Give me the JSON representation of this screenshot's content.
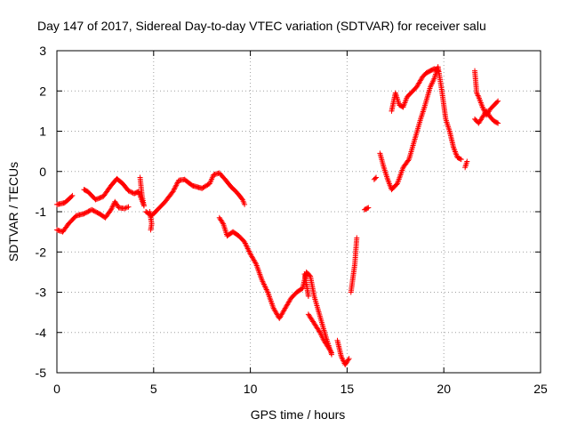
{
  "chart_data": {
    "type": "scatter",
    "title": "Day 147 of 2017, Sidereal Day-to-day VTEC variation (SDTVAR) for receiver salu",
    "xlabel": "GPS time / hours",
    "ylabel": "SDTVAR / TECUs",
    "xlim": [
      0,
      25
    ],
    "ylim": [
      -5,
      3
    ],
    "x_ticks": [
      "0",
      "5",
      "10",
      "15",
      "20",
      "25"
    ],
    "y_ticks": [
      "-5",
      "-4",
      "-3",
      "-2",
      "-1",
      "0",
      "1",
      "2",
      "3"
    ],
    "grid": true,
    "marker": "+",
    "marker_color": "#ff0000",
    "series": [
      {
        "segments": [
          [
            [
              0.0,
              -0.82
            ],
            [
              0.4,
              -0.78
            ],
            [
              0.7,
              -0.65
            ],
            [
              0.8,
              -0.6
            ]
          ],
          [
            [
              1.4,
              -0.45
            ],
            [
              1.6,
              -0.5
            ],
            [
              2.0,
              -0.7
            ],
            [
              2.4,
              -0.62
            ],
            [
              2.8,
              -0.35
            ],
            [
              3.1,
              -0.18
            ],
            [
              3.4,
              -0.3
            ],
            [
              3.7,
              -0.48
            ],
            [
              4.0,
              -0.55
            ],
            [
              4.2,
              -0.5
            ],
            [
              4.3,
              -0.6
            ],
            [
              4.5,
              -0.85
            ]
          ],
          [
            [
              4.6,
              -1.0
            ],
            [
              4.9,
              -1.1
            ],
            [
              5.2,
              -0.95
            ],
            [
              5.6,
              -0.75
            ],
            [
              6.0,
              -0.5
            ],
            [
              6.3,
              -0.22
            ],
            [
              6.6,
              -0.2
            ],
            [
              7.0,
              -0.35
            ],
            [
              7.5,
              -0.42
            ],
            [
              7.9,
              -0.3
            ],
            [
              8.1,
              -0.08
            ],
            [
              8.4,
              -0.04
            ],
            [
              8.7,
              -0.2
            ],
            [
              9.0,
              -0.38
            ],
            [
              9.3,
              -0.52
            ],
            [
              9.6,
              -0.7
            ],
            [
              9.7,
              -0.82
            ]
          ],
          [
            [
              8.4,
              -1.15
            ],
            [
              8.6,
              -1.3
            ],
            [
              8.8,
              -1.6
            ],
            [
              9.1,
              -1.5
            ],
            [
              9.4,
              -1.6
            ],
            [
              9.7,
              -1.75
            ],
            [
              10.0,
              -2.05
            ],
            [
              10.3,
              -2.3
            ],
            [
              10.6,
              -2.7
            ],
            [
              10.9,
              -3.0
            ],
            [
              11.2,
              -3.4
            ],
            [
              11.5,
              -3.65
            ],
            [
              11.8,
              -3.4
            ],
            [
              12.1,
              -3.15
            ],
            [
              12.4,
              -3.0
            ],
            [
              12.7,
              -2.9
            ],
            [
              12.9,
              -2.5
            ],
            [
              13.1,
              -2.6
            ],
            [
              13.3,
              -3.1
            ],
            [
              13.6,
              -3.6
            ],
            [
              13.9,
              -4.1
            ],
            [
              14.2,
              -4.55
            ]
          ],
          [
            [
              14.5,
              -4.2
            ],
            [
              14.7,
              -4.6
            ],
            [
              14.9,
              -4.8
            ],
            [
              15.1,
              -4.65
            ]
          ],
          [
            [
              15.2,
              -3.0
            ],
            [
              15.4,
              -2.3
            ],
            [
              15.5,
              -1.65
            ]
          ],
          [
            [
              15.9,
              -0.95
            ],
            [
              16.1,
              -0.9
            ]
          ],
          [
            [
              16.4,
              -0.2
            ],
            [
              16.5,
              -0.15
            ]
          ],
          [
            [
              16.7,
              0.45
            ],
            [
              16.9,
              0.1
            ],
            [
              17.1,
              -0.2
            ],
            [
              17.3,
              -0.45
            ],
            [
              17.6,
              -0.3
            ],
            [
              17.9,
              0.1
            ],
            [
              18.2,
              0.3
            ],
            [
              18.5,
              0.8
            ],
            [
              18.8,
              1.3
            ],
            [
              19.0,
              1.6
            ],
            [
              19.3,
              2.1
            ],
            [
              19.5,
              2.3
            ],
            [
              19.7,
              2.6
            ],
            [
              19.9,
              2.0
            ],
            [
              20.1,
              1.3
            ],
            [
              20.3,
              1.0
            ],
            [
              20.5,
              0.6
            ],
            [
              20.7,
              0.35
            ],
            [
              20.9,
              0.3
            ]
          ],
          [
            [
              21.6,
              2.5
            ],
            [
              21.7,
              1.95
            ],
            [
              21.8,
              1.85
            ],
            [
              22.0,
              1.6
            ],
            [
              22.2,
              1.4
            ],
            [
              22.4,
              1.55
            ],
            [
              22.6,
              1.65
            ],
            [
              22.8,
              1.75
            ]
          ]
        ]
      },
      {
        "segments": [
          [
            [
              0.0,
              -1.45
            ],
            [
              0.3,
              -1.5
            ],
            [
              0.6,
              -1.3
            ],
            [
              1.0,
              -1.1
            ],
            [
              1.4,
              -1.05
            ],
            [
              1.8,
              -0.95
            ],
            [
              2.2,
              -1.05
            ],
            [
              2.5,
              -1.15
            ],
            [
              2.8,
              -0.95
            ],
            [
              3.0,
              -0.75
            ],
            [
              3.2,
              -0.9
            ],
            [
              3.5,
              -0.92
            ],
            [
              3.7,
              -0.88
            ]
          ],
          [
            [
              4.3,
              -0.15
            ],
            [
              4.4,
              -0.6
            ],
            [
              4.5,
              -0.85
            ]
          ],
          [
            [
              4.8,
              -1.0
            ],
            [
              4.9,
              -1.3
            ],
            [
              4.85,
              -1.45
            ]
          ],
          [
            [
              13.0,
              -3.55
            ],
            [
              13.2,
              -3.7
            ],
            [
              13.4,
              -3.85
            ],
            [
              13.6,
              -4.0
            ],
            [
              13.8,
              -4.2
            ],
            [
              14.0,
              -4.35
            ],
            [
              14.2,
              -4.5
            ]
          ],
          [
            [
              12.8,
              -2.55
            ],
            [
              12.9,
              -2.8
            ],
            [
              13.0,
              -3.1
            ]
          ],
          [
            [
              17.3,
              1.5
            ],
            [
              17.5,
              1.95
            ],
            [
              17.7,
              1.65
            ],
            [
              17.9,
              1.6
            ],
            [
              18.1,
              1.85
            ],
            [
              18.3,
              1.95
            ],
            [
              18.6,
              2.1
            ],
            [
              18.9,
              2.35
            ],
            [
              19.1,
              2.45
            ],
            [
              19.3,
              2.5
            ],
            [
              19.5,
              2.55
            ],
            [
              19.7,
              2.5
            ]
          ],
          [
            [
              21.6,
              1.3
            ],
            [
              21.8,
              1.2
            ],
            [
              22.0,
              1.35
            ],
            [
              22.2,
              1.5
            ],
            [
              22.4,
              1.35
            ],
            [
              22.6,
              1.25
            ],
            [
              22.8,
              1.2
            ]
          ],
          [
            [
              21.2,
              0.25
            ],
            [
              21.1,
              0.1
            ]
          ]
        ]
      }
    ]
  }
}
